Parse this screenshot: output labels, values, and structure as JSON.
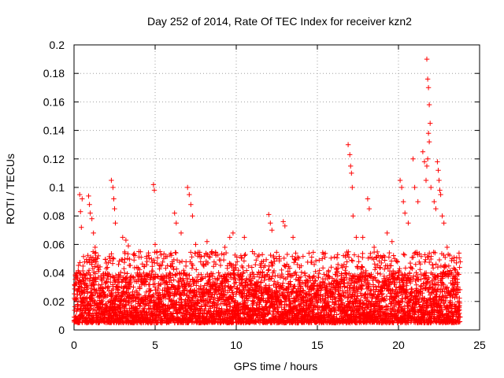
{
  "chart_data": {
    "type": "scatter",
    "title": "Day 252 of 2014, Rate Of TEC Index for receiver kzn2",
    "xlabel": "GPS time / hours",
    "ylabel": "ROTI / TECUs",
    "xlim": [
      0,
      25
    ],
    "ylim": [
      0,
      0.2
    ],
    "xticks": [
      0,
      5,
      10,
      15,
      20,
      25
    ],
    "xtick_labels": [
      "0",
      "5",
      "10",
      "15",
      "20",
      "25"
    ],
    "yticks": [
      0,
      0.02,
      0.04,
      0.06,
      0.08,
      0.1,
      0.12,
      0.14,
      0.16,
      0.18,
      0.2
    ],
    "ytick_labels": [
      "0",
      "0.02",
      "0.04",
      "0.06",
      "0.08",
      "0.1",
      "0.12",
      "0.14",
      "0.16",
      "0.18",
      "0.2"
    ],
    "grid": true,
    "marker": "+",
    "series_color": "#ff0000",
    "data_time_range_hours": [
      0,
      23.8
    ],
    "baseline_band": [
      0.005,
      0.04
    ],
    "outlier_points": [
      {
        "x": 0.2,
        "y": 0.038
      },
      {
        "x": 0.35,
        "y": 0.095
      },
      {
        "x": 0.4,
        "y": 0.083
      },
      {
        "x": 0.45,
        "y": 0.072
      },
      {
        "x": 0.5,
        "y": 0.092
      },
      {
        "x": 0.9,
        "y": 0.094
      },
      {
        "x": 0.95,
        "y": 0.088
      },
      {
        "x": 1.0,
        "y": 0.082
      },
      {
        "x": 1.1,
        "y": 0.078
      },
      {
        "x": 1.2,
        "y": 0.068
      },
      {
        "x": 1.3,
        "y": 0.058
      },
      {
        "x": 1.5,
        "y": 0.052
      },
      {
        "x": 2.3,
        "y": 0.105
      },
      {
        "x": 2.4,
        "y": 0.1
      },
      {
        "x": 2.45,
        "y": 0.092
      },
      {
        "x": 2.5,
        "y": 0.085
      },
      {
        "x": 2.55,
        "y": 0.075
      },
      {
        "x": 3.0,
        "y": 0.065
      },
      {
        "x": 3.2,
        "y": 0.063
      },
      {
        "x": 3.35,
        "y": 0.059
      },
      {
        "x": 4.0,
        "y": 0.055
      },
      {
        "x": 4.5,
        "y": 0.048
      },
      {
        "x": 4.9,
        "y": 0.102
      },
      {
        "x": 4.95,
        "y": 0.098
      },
      {
        "x": 5.0,
        "y": 0.06
      },
      {
        "x": 5.3,
        "y": 0.055
      },
      {
        "x": 6.2,
        "y": 0.082
      },
      {
        "x": 6.3,
        "y": 0.075
      },
      {
        "x": 6.6,
        "y": 0.068
      },
      {
        "x": 7.0,
        "y": 0.1
      },
      {
        "x": 7.1,
        "y": 0.095
      },
      {
        "x": 7.2,
        "y": 0.088
      },
      {
        "x": 7.3,
        "y": 0.08
      },
      {
        "x": 7.5,
        "y": 0.06
      },
      {
        "x": 8.2,
        "y": 0.062
      },
      {
        "x": 8.5,
        "y": 0.055
      },
      {
        "x": 9.3,
        "y": 0.058
      },
      {
        "x": 9.6,
        "y": 0.065
      },
      {
        "x": 9.8,
        "y": 0.068
      },
      {
        "x": 10.5,
        "y": 0.065
      },
      {
        "x": 11.0,
        "y": 0.055
      },
      {
        "x": 12.0,
        "y": 0.081
      },
      {
        "x": 12.1,
        "y": 0.075
      },
      {
        "x": 12.2,
        "y": 0.07
      },
      {
        "x": 12.9,
        "y": 0.076
      },
      {
        "x": 13.0,
        "y": 0.073
      },
      {
        "x": 13.5,
        "y": 0.065
      },
      {
        "x": 14.0,
        "y": 0.045
      },
      {
        "x": 15.3,
        "y": 0.05
      },
      {
        "x": 16.5,
        "y": 0.045
      },
      {
        "x": 16.9,
        "y": 0.13
      },
      {
        "x": 17.0,
        "y": 0.123
      },
      {
        "x": 17.05,
        "y": 0.115
      },
      {
        "x": 17.1,
        "y": 0.11
      },
      {
        "x": 17.15,
        "y": 0.1
      },
      {
        "x": 17.2,
        "y": 0.08
      },
      {
        "x": 17.4,
        "y": 0.065
      },
      {
        "x": 17.8,
        "y": 0.065
      },
      {
        "x": 18.1,
        "y": 0.092
      },
      {
        "x": 18.2,
        "y": 0.085
      },
      {
        "x": 18.5,
        "y": 0.058
      },
      {
        "x": 19.3,
        "y": 0.068
      },
      {
        "x": 19.6,
        "y": 0.062
      },
      {
        "x": 20.1,
        "y": 0.105
      },
      {
        "x": 20.2,
        "y": 0.1
      },
      {
        "x": 20.3,
        "y": 0.09
      },
      {
        "x": 20.4,
        "y": 0.082
      },
      {
        "x": 20.6,
        "y": 0.075
      },
      {
        "x": 20.9,
        "y": 0.12
      },
      {
        "x": 21.0,
        "y": 0.1
      },
      {
        "x": 21.2,
        "y": 0.09
      },
      {
        "x": 21.5,
        "y": 0.125
      },
      {
        "x": 21.6,
        "y": 0.118
      },
      {
        "x": 21.75,
        "y": 0.19
      },
      {
        "x": 21.8,
        "y": 0.176
      },
      {
        "x": 21.85,
        "y": 0.17
      },
      {
        "x": 21.9,
        "y": 0.158
      },
      {
        "x": 21.95,
        "y": 0.145
      },
      {
        "x": 21.85,
        "y": 0.138
      },
      {
        "x": 21.9,
        "y": 0.132
      },
      {
        "x": 21.8,
        "y": 0.12
      },
      {
        "x": 21.75,
        "y": 0.115
      },
      {
        "x": 21.7,
        "y": 0.105
      },
      {
        "x": 22.0,
        "y": 0.1
      },
      {
        "x": 22.2,
        "y": 0.09
      },
      {
        "x": 22.3,
        "y": 0.085
      },
      {
        "x": 22.4,
        "y": 0.118
      },
      {
        "x": 22.45,
        "y": 0.112
      },
      {
        "x": 22.5,
        "y": 0.105
      },
      {
        "x": 22.55,
        "y": 0.098
      },
      {
        "x": 22.6,
        "y": 0.095
      },
      {
        "x": 22.7,
        "y": 0.08
      },
      {
        "x": 22.8,
        "y": 0.075
      },
      {
        "x": 23.0,
        "y": 0.058
      },
      {
        "x": 23.3,
        "y": 0.05
      },
      {
        "x": 23.6,
        "y": 0.04
      }
    ]
  }
}
